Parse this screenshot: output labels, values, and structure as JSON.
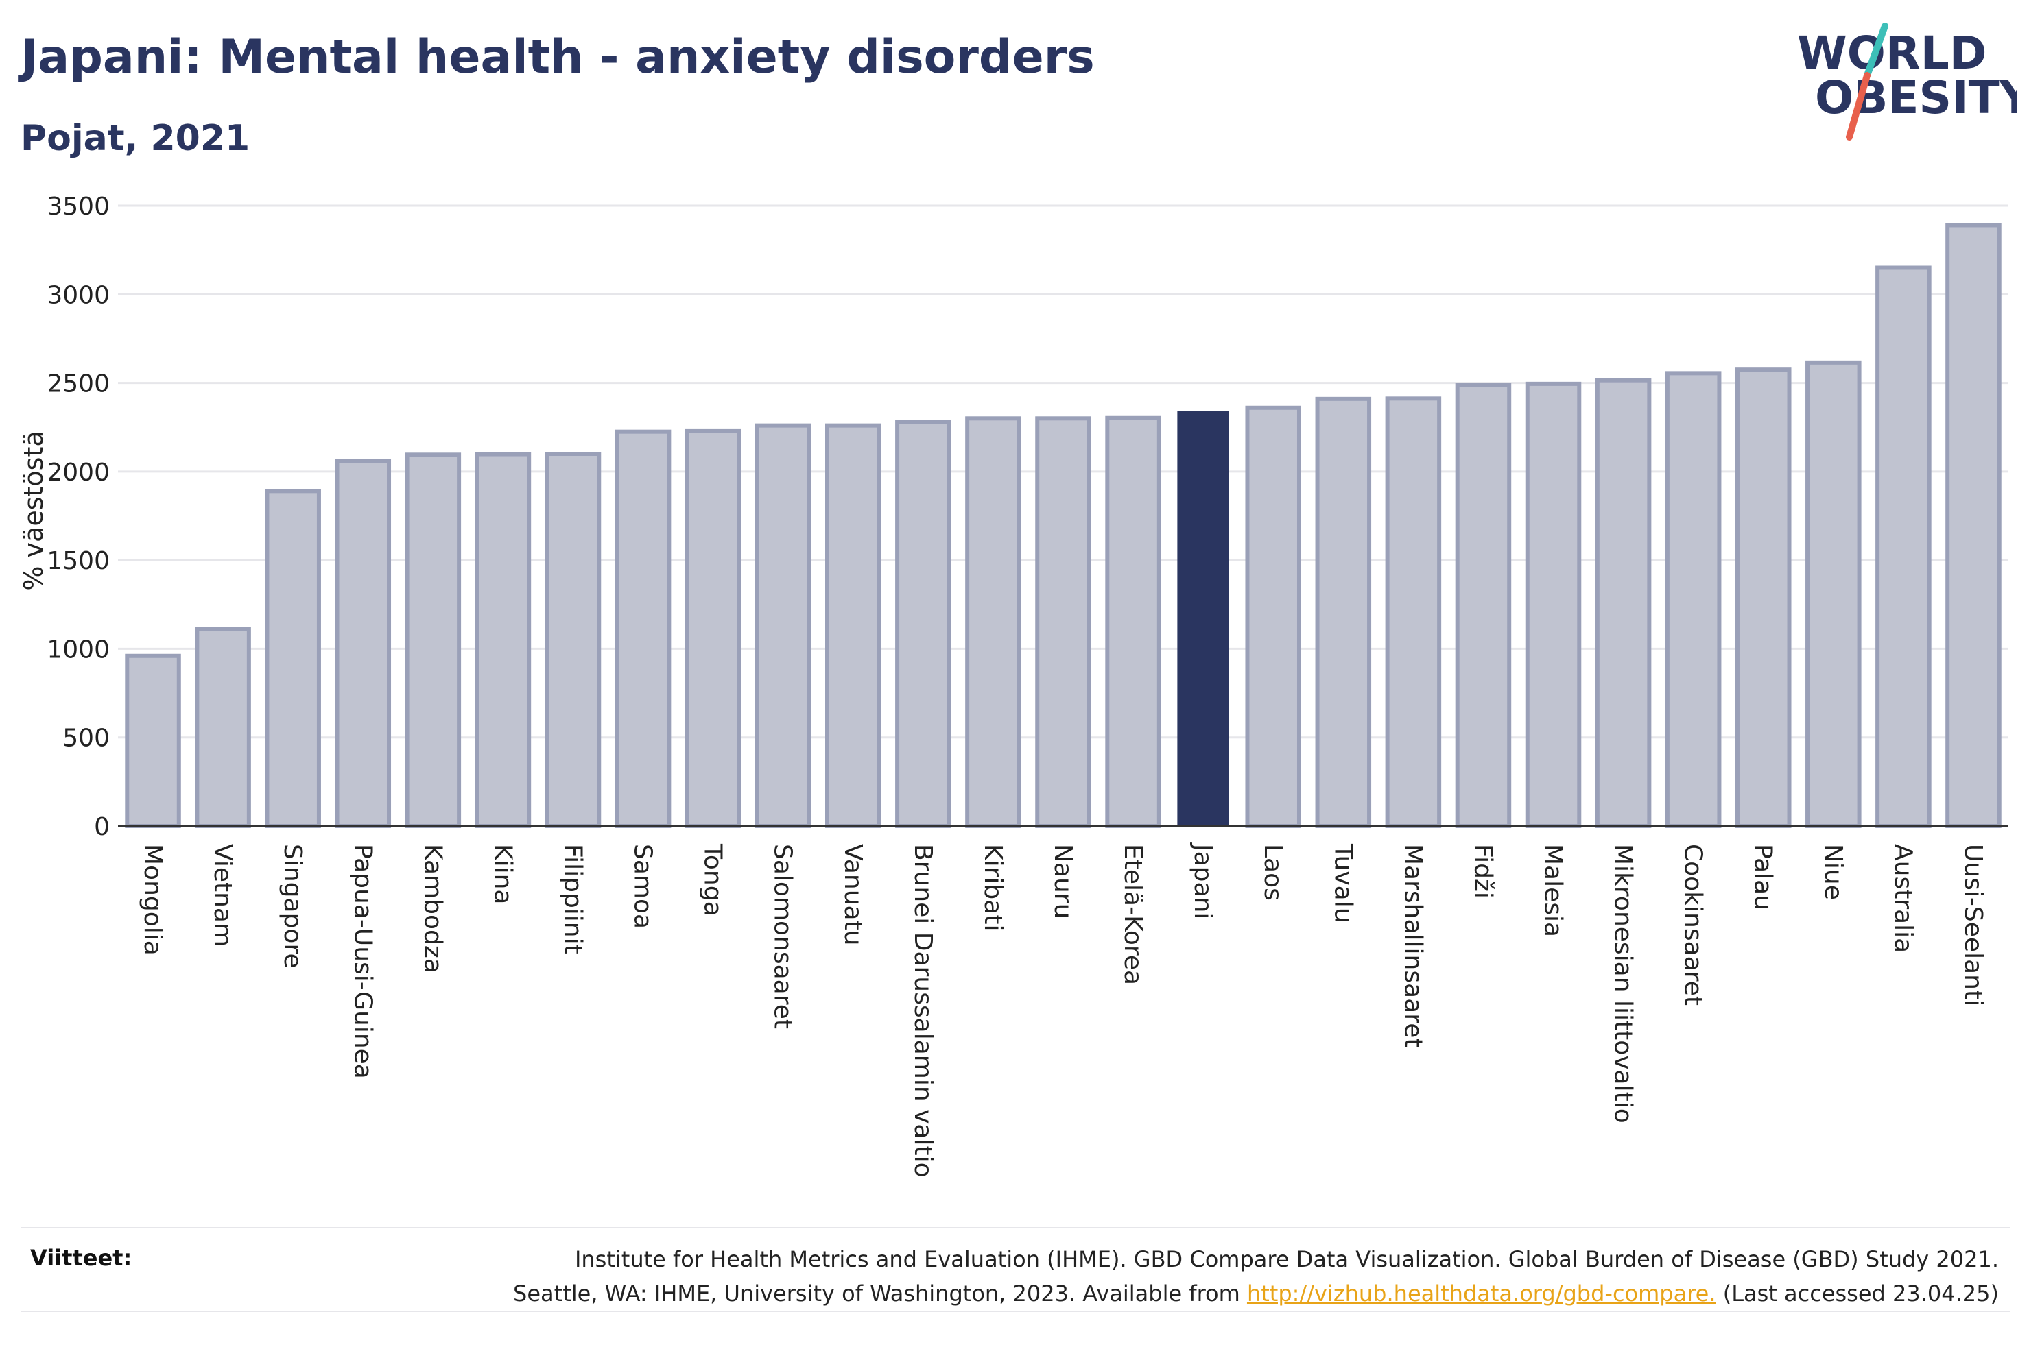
{
  "header": {
    "title": "Japani: Mental health - anxiety disorders",
    "subtitle": "Pojat, 2021"
  },
  "logo": {
    "line1": "WORLD",
    "line2": "OBESITY",
    "brand_color": "#2a3560",
    "slash_color_top": "#3dbfb8",
    "slash_color_bottom": "#e8604c"
  },
  "colors": {
    "bar_fill": "#c0c3d0",
    "bar_stroke": "#9aa0b8",
    "highlight_fill": "#2a3560",
    "axis": "#333333",
    "grid": "#e6e6ea"
  },
  "chart_data": {
    "type": "bar",
    "ylabel": "% väestöstä",
    "ylim": [
      0,
      3500
    ],
    "yticks": [
      0,
      500,
      1000,
      1500,
      2000,
      2500,
      3000,
      3500
    ],
    "grid": true,
    "highlight": "Japani",
    "categories": [
      "Mongolia",
      "Vietnam",
      "Singapore",
      "Papua-Uusi-Guinea",
      "Kambodza",
      "Kiina",
      "Filippiinit",
      "Samoa",
      "Tonga",
      "Salomonsaaret",
      "Vanuatu",
      "Brunei Darussalamin valtio",
      "Kiribati",
      "Nauru",
      "Etelä-Korea",
      "Japani",
      "Laos",
      "Tuvalu",
      "Marshallinsaaret",
      "Fidži",
      "Malesia",
      "Mikronesian liittovaltio",
      "Cookinsaaret",
      "Palau",
      "Niue",
      "Australia",
      "Uusi-Seelanti"
    ],
    "values": [
      960,
      1110,
      1890,
      2060,
      2095,
      2098,
      2100,
      2225,
      2228,
      2260,
      2260,
      2278,
      2300,
      2300,
      2302,
      2340,
      2360,
      2410,
      2412,
      2488,
      2495,
      2515,
      2555,
      2575,
      2615,
      3150,
      3390
    ]
  },
  "footer": {
    "refs_label": "Viitteet:",
    "refs_line1": "Institute for Health Metrics and Evaluation (IHME). GBD Compare Data Visualization. Global Burden of Disease (GBD) Study 2021.",
    "refs_line2_pre": "Seattle, WA: IHME, University of Washington, 2023. Available from ",
    "refs_link": "http://vizhub.healthdata.org/gbd-compare.",
    "refs_line2_post": " (Last accessed 23.04.25)"
  }
}
